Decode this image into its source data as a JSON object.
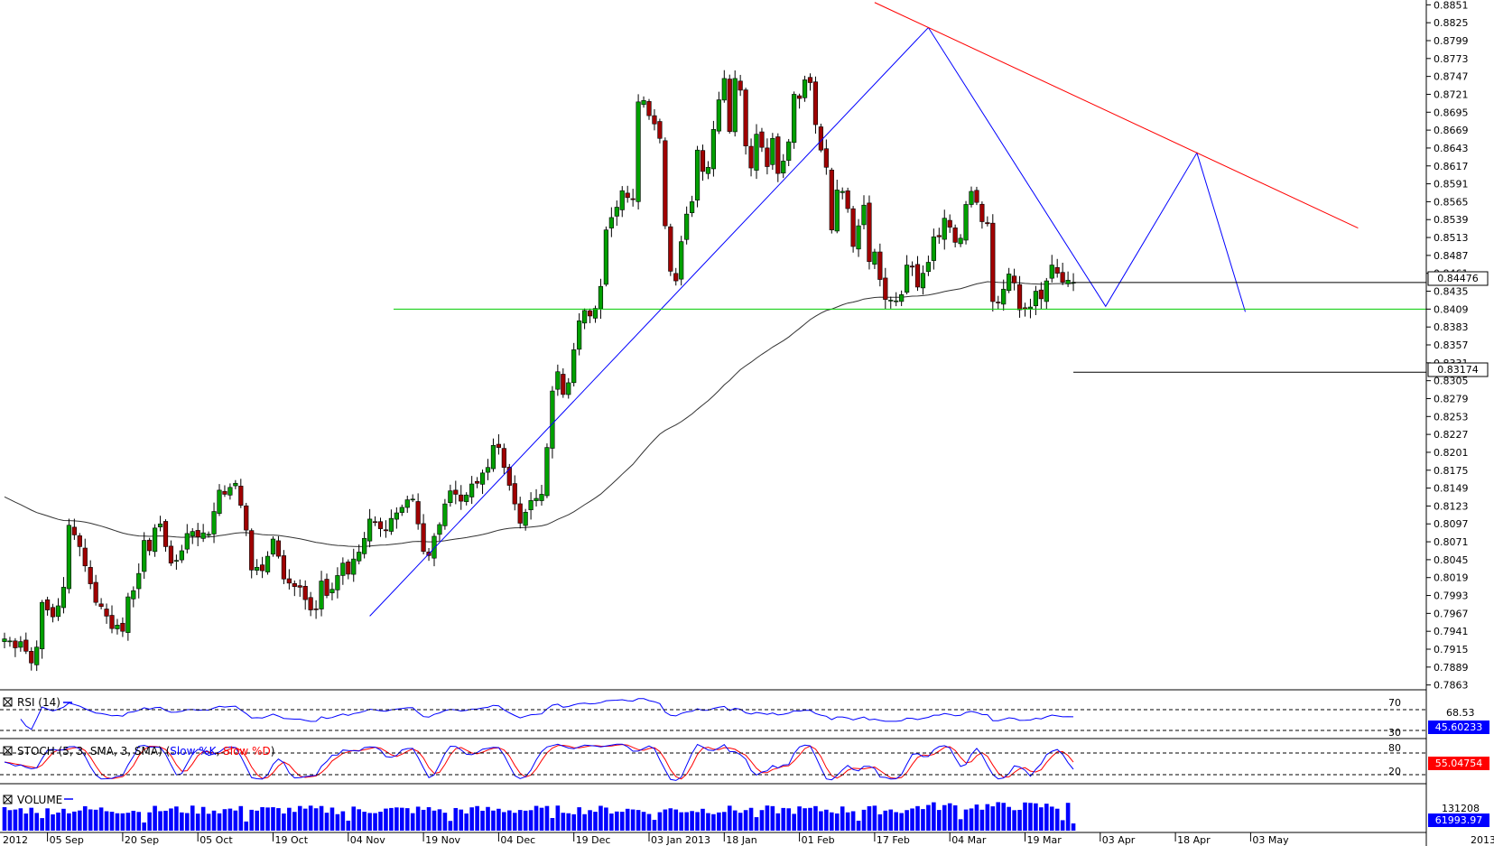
{
  "chart_data": {
    "type": "candlestick",
    "price_axis": {
      "ticks": [
        "0.8851",
        "0.8825",
        "0.8799",
        "0.8773",
        "0.8747",
        "0.8721",
        "0.8695",
        "0.8669",
        "0.8643",
        "0.8617",
        "0.8591",
        "0.8565",
        "0.8539",
        "0.8513",
        "0.8487",
        "0.8461",
        "0.8435",
        "0.8409",
        "0.8383",
        "0.8357",
        "0.8331",
        "0.8305",
        "0.8279",
        "0.8253",
        "0.8227",
        "0.8201",
        "0.8175",
        "0.8149",
        "0.8123",
        "0.8097",
        "0.8071",
        "0.8045",
        "0.8019",
        "0.7993",
        "0.7967",
        "0.7941",
        "0.7915",
        "0.7889",
        "0.7863"
      ],
      "ylim": [
        0.7856,
        0.8858
      ]
    },
    "date_axis": {
      "labels": [
        "2012",
        "05 Sep",
        "20 Sep",
        "05 Oct",
        "19 Oct",
        "04 Nov",
        "19 Nov",
        "04 Dec",
        "19 Dec",
        "03 Jan 2013",
        "18 Jan",
        "01 Feb",
        "17 Feb",
        "04 Mar",
        "19 Mar",
        "03 Apr",
        "18 Apr",
        "03 May",
        "2013"
      ],
      "bar_index": [
        0,
        8,
        22,
        36,
        50,
        64,
        78,
        92,
        106,
        120,
        134,
        148,
        162,
        176,
        190,
        204,
        218,
        232,
        258
      ]
    },
    "close": [
      0.793,
      0.7927,
      0.7917,
      0.7926,
      0.7912,
      0.7895,
      0.7918,
      0.7983,
      0.7972,
      0.7962,
      0.7978,
      0.8005,
      0.8095,
      0.8081,
      0.8064,
      0.8036,
      0.801,
      0.7983,
      0.7977,
      0.7963,
      0.7945,
      0.795,
      0.7941,
      0.7991,
      0.8,
      0.8025,
      0.8073,
      0.8058,
      0.8091,
      0.8097,
      0.8064,
      0.804,
      0.8044,
      0.8058,
      0.8083,
      0.8086,
      0.8078,
      0.8084,
      0.8082,
      0.8115,
      0.8146,
      0.814,
      0.815,
      0.8156,
      0.8124,
      0.8088,
      0.803,
      0.8034,
      0.8029,
      0.805,
      0.8075,
      0.805,
      0.8017,
      0.8011,
      0.8006,
      0.8005,
      0.7987,
      0.7972,
      0.7973,
      0.8014,
      0.7993,
      0.8002,
      0.8022,
      0.804,
      0.8024,
      0.8046,
      0.8056,
      0.8076,
      0.8104,
      0.8099,
      0.809,
      0.8087,
      0.8105,
      0.8113,
      0.8121,
      0.8132,
      0.8133,
      0.8097,
      0.8057,
      0.8051,
      0.8079,
      0.8096,
      0.8126,
      0.8145,
      0.814,
      0.813,
      0.8139,
      0.8155,
      0.8156,
      0.8171,
      0.8179,
      0.8211,
      0.8208,
      0.8179,
      0.8153,
      0.8126,
      0.8098,
      0.8114,
      0.8131,
      0.8134,
      0.814,
      0.8208,
      0.829,
      0.8318,
      0.8285,
      0.8302,
      0.835,
      0.8392,
      0.8407,
      0.8399,
      0.841,
      0.8442,
      0.8524,
      0.8542,
      0.8557,
      0.8581,
      0.8571,
      0.8568,
      0.871,
      0.8712,
      0.869,
      0.8678,
      0.8657,
      0.853,
      0.8464,
      0.845,
      0.8507,
      0.8547,
      0.8565,
      0.864,
      0.8609,
      0.8615,
      0.867,
      0.8713,
      0.8744,
      0.8667,
      0.8744,
      0.8727,
      0.8646,
      0.8614,
      0.8663,
      0.8644,
      0.8616,
      0.8657,
      0.8606,
      0.8624,
      0.8652,
      0.8721,
      0.8715,
      0.8742,
      0.8738,
      0.8677,
      0.864,
      0.8615,
      0.8524,
      0.8582,
      0.858,
      0.8555,
      0.85,
      0.853,
      0.856,
      0.8478,
      0.8492,
      0.8452,
      0.8423,
      0.8422,
      0.8421,
      0.843,
      0.8473,
      0.847,
      0.8441,
      0.8461,
      0.8477,
      0.8514,
      0.8514,
      0.8541,
      0.8528,
      0.8506,
      0.8512,
      0.8561,
      0.858,
      0.8564,
      0.8536,
      0.8533,
      0.842,
      0.8419,
      0.8438,
      0.846,
      0.8447,
      0.8408,
      0.8409,
      0.8412,
      0.8435,
      0.8424,
      0.845,
      0.8473,
      0.8461,
      0.8448,
      0.8451,
      0.8448
    ]
  },
  "tags": {
    "last_price": "0.84476",
    "ma_value": "0.83174"
  },
  "rsi": {
    "label": "RSI (14)",
    "level_high": "70",
    "level_low": "30",
    "axis_value": "68.53",
    "current": "45.60233"
  },
  "stoch": {
    "label_prefix": "STOCH (5, 3, SMA, 3, SMA)",
    "k_label": "Slow %K",
    "d_label": "Slow %D",
    "level_high": "80",
    "level_low": "20",
    "current": "55.04754"
  },
  "volume": {
    "label": "VOLUME",
    "axis_value": "131208",
    "current": "61993.97"
  },
  "colors": {
    "bull": "#00a000",
    "bear": "#a00000",
    "ma": "#333333",
    "zigzag": "#0000ff",
    "resistance": "#ff0000",
    "support": "#00cc00",
    "rsi": "#0000ff",
    "stoch_k": "#0000ff",
    "stoch_d": "#ff0000",
    "volume": "#0000ff",
    "tag_blue": "#0000ff"
  }
}
